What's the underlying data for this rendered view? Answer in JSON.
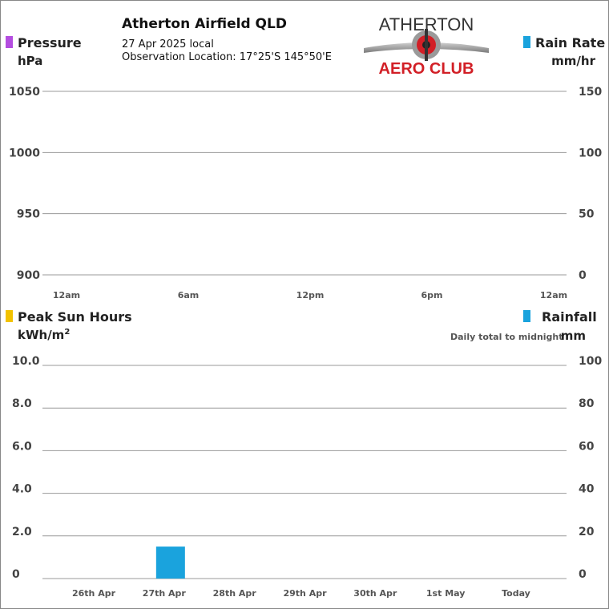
{
  "header": {
    "title": "Atherton Airfield QLD",
    "date": "27 Apr 2025 local",
    "location": "Observation Location: 17°25'S 145°50'E"
  },
  "logo": {
    "line1": "ATHERTON",
    "line2": "AERO CLUB"
  },
  "colors": {
    "pressure": "#b44de0",
    "rain_rate": "#1aa3dd",
    "sun": "#f2c200",
    "rainfall": "#1aa3dd"
  },
  "chart_data": [
    {
      "type": "line",
      "left_axis": {
        "label": "Pressure",
        "unit": "hPa",
        "ticks": [
          "1050",
          "1000",
          "950",
          "900"
        ],
        "range": [
          900,
          1050
        ]
      },
      "right_axis": {
        "label": "Rain Rate",
        "unit": "mm/hr",
        "ticks": [
          "150",
          "100",
          "50",
          "0"
        ],
        "range": [
          0,
          150
        ]
      },
      "x_ticks": [
        "12am",
        "6am",
        "12pm",
        "6pm",
        "12am"
      ],
      "series": []
    },
    {
      "type": "bar",
      "left_axis": {
        "label": "Peak Sun Hours",
        "unit": "kWh/m",
        "unit_sup": "2",
        "ticks": [
          "10.0",
          "8.0",
          "6.0",
          "4.0",
          "2.0",
          "0"
        ],
        "range": [
          0,
          10
        ]
      },
      "right_axis": {
        "label": "Rainfall",
        "unit": "mm",
        "note": "Daily total to midnight",
        "ticks": [
          "100",
          "80",
          "60",
          "40",
          "20",
          "0"
        ],
        "range": [
          0,
          100
        ]
      },
      "categories": [
        "26th Apr",
        "27th Apr",
        "28th Apr",
        "29th Apr",
        "30th Apr",
        "1st May",
        "Today"
      ],
      "series": [
        {
          "values": [
            0,
            1.5,
            0,
            0,
            0,
            0,
            0
          ]
        }
      ]
    }
  ]
}
